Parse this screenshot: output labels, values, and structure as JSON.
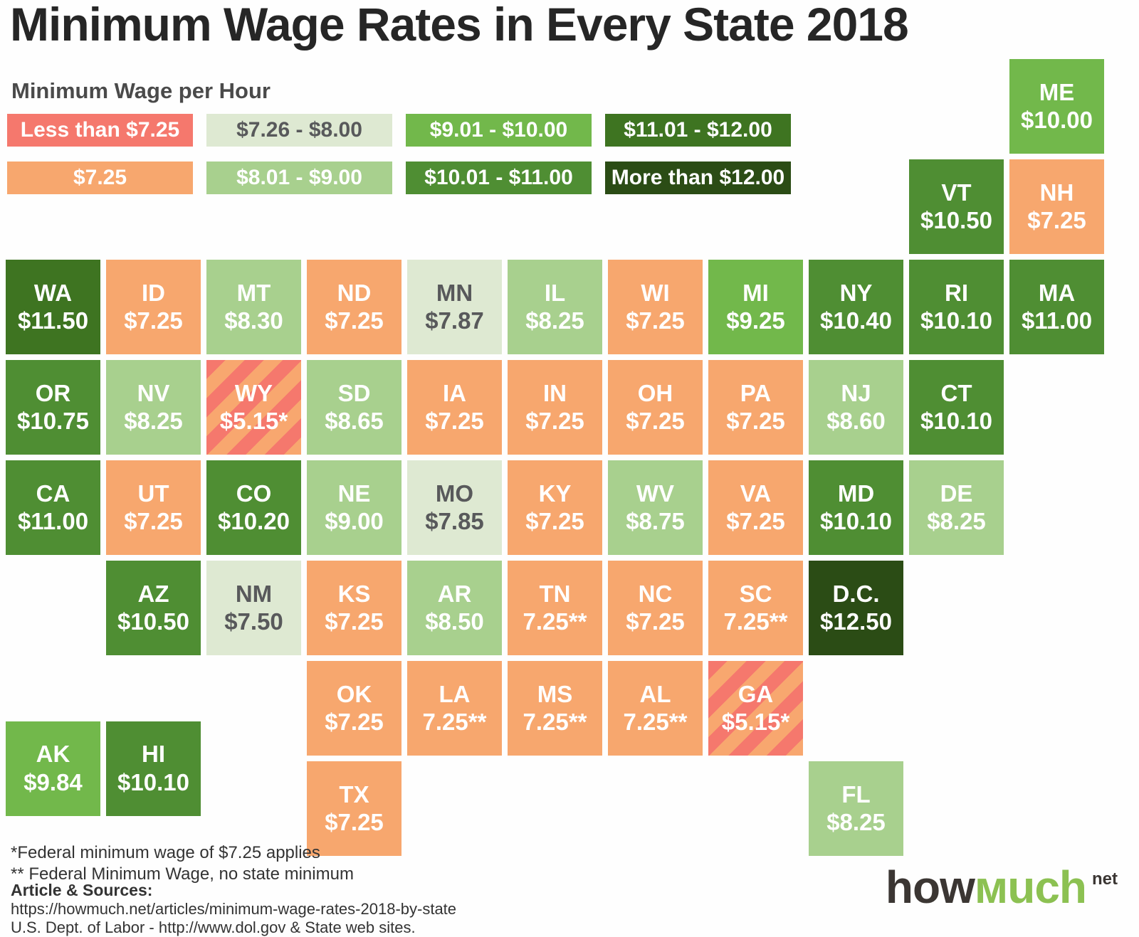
{
  "title": "Minimum Wage Rates in Every State 2018",
  "legend": {
    "heading": "Minimum Wage per Hour"
  },
  "categories": [
    {
      "id": "lt-7.25",
      "label": "Less than $7.25",
      "color": "#f5786d",
      "stripe_color": "#f8a76f",
      "text_color": "#ffffff",
      "striped": true
    },
    {
      "id": "7.25",
      "label": "$7.25",
      "color": "#f7a76e",
      "text_color": "#ffffff",
      "striped": false
    },
    {
      "id": "7.26-8.00",
      "label": "$7.26 - $8.00",
      "color": "#dee9d2",
      "text_color": "#58595b",
      "striped": false
    },
    {
      "id": "8.01-9.00",
      "label": "$8.01 - $9.00",
      "color": "#a8d08e",
      "text_color": "#ffffff",
      "striped": false
    },
    {
      "id": "9.01-10.00",
      "label": "$9.01 - $10.00",
      "color": "#72b84b",
      "text_color": "#ffffff",
      "striped": false
    },
    {
      "id": "10.01-11.00",
      "label": "$10.01 - $11.00",
      "color": "#4f8e33",
      "text_color": "#ffffff",
      "striped": false
    },
    {
      "id": "11.01-12.00",
      "label": "$11.01 - $12.00",
      "color": "#3e7421",
      "text_color": "#ffffff",
      "striped": false
    },
    {
      "id": "gt-12.00",
      "label": "More than $12.00",
      "color": "#2b4c15",
      "text_color": "#ffffff",
      "striped": false
    }
  ],
  "map": {
    "tiles": [
      {
        "abbr": "ME",
        "value": "$10.00",
        "cat": 4,
        "row": 0,
        "col": 10
      },
      {
        "abbr": "VT",
        "value": "$10.50",
        "cat": 5,
        "row": 1,
        "col": 9
      },
      {
        "abbr": "NH",
        "value": "$7.25",
        "cat": 1,
        "row": 1,
        "col": 10
      },
      {
        "abbr": "WA",
        "value": "$11.50",
        "cat": 6,
        "row": 2,
        "col": 0
      },
      {
        "abbr": "ID",
        "value": "$7.25",
        "cat": 1,
        "row": 2,
        "col": 1
      },
      {
        "abbr": "MT",
        "value": "$8.30",
        "cat": 3,
        "row": 2,
        "col": 2
      },
      {
        "abbr": "ND",
        "value": "$7.25",
        "cat": 1,
        "row": 2,
        "col": 3
      },
      {
        "abbr": "MN",
        "value": "$7.87",
        "cat": 2,
        "row": 2,
        "col": 4
      },
      {
        "abbr": "IL",
        "value": "$8.25",
        "cat": 3,
        "row": 2,
        "col": 5
      },
      {
        "abbr": "WI",
        "value": "$7.25",
        "cat": 1,
        "row": 2,
        "col": 6
      },
      {
        "abbr": "MI",
        "value": "$9.25",
        "cat": 4,
        "row": 2,
        "col": 7
      },
      {
        "abbr": "NY",
        "value": "$10.40",
        "cat": 5,
        "row": 2,
        "col": 8
      },
      {
        "abbr": "RI",
        "value": "$10.10",
        "cat": 5,
        "row": 2,
        "col": 9
      },
      {
        "abbr": "MA",
        "value": "$11.00",
        "cat": 5,
        "row": 2,
        "col": 10
      },
      {
        "abbr": "OR",
        "value": "$10.75",
        "cat": 5,
        "row": 3,
        "col": 0
      },
      {
        "abbr": "NV",
        "value": "$8.25",
        "cat": 3,
        "row": 3,
        "col": 1
      },
      {
        "abbr": "WY",
        "value": "$5.15*",
        "cat": 0,
        "row": 3,
        "col": 2
      },
      {
        "abbr": "SD",
        "value": "$8.65",
        "cat": 3,
        "row": 3,
        "col": 3
      },
      {
        "abbr": "IA",
        "value": "$7.25",
        "cat": 1,
        "row": 3,
        "col": 4
      },
      {
        "abbr": "IN",
        "value": "$7.25",
        "cat": 1,
        "row": 3,
        "col": 5
      },
      {
        "abbr": "OH",
        "value": "$7.25",
        "cat": 1,
        "row": 3,
        "col": 6
      },
      {
        "abbr": "PA",
        "value": "$7.25",
        "cat": 1,
        "row": 3,
        "col": 7
      },
      {
        "abbr": "NJ",
        "value": "$8.60",
        "cat": 3,
        "row": 3,
        "col": 8
      },
      {
        "abbr": "CT",
        "value": "$10.10",
        "cat": 5,
        "row": 3,
        "col": 9
      },
      {
        "abbr": "CA",
        "value": "$11.00",
        "cat": 5,
        "row": 4,
        "col": 0
      },
      {
        "abbr": "UT",
        "value": "$7.25",
        "cat": 1,
        "row": 4,
        "col": 1
      },
      {
        "abbr": "CO",
        "value": "$10.20",
        "cat": 5,
        "row": 4,
        "col": 2
      },
      {
        "abbr": "NE",
        "value": "$9.00",
        "cat": 3,
        "row": 4,
        "col": 3
      },
      {
        "abbr": "MO",
        "value": "$7.85",
        "cat": 2,
        "row": 4,
        "col": 4
      },
      {
        "abbr": "KY",
        "value": "$7.25",
        "cat": 1,
        "row": 4,
        "col": 5
      },
      {
        "abbr": "WV",
        "value": "$8.75",
        "cat": 3,
        "row": 4,
        "col": 6
      },
      {
        "abbr": "VA",
        "value": "$7.25",
        "cat": 1,
        "row": 4,
        "col": 7
      },
      {
        "abbr": "MD",
        "value": "$10.10",
        "cat": 5,
        "row": 4,
        "col": 8
      },
      {
        "abbr": "DE",
        "value": "$8.25",
        "cat": 3,
        "row": 4,
        "col": 9
      },
      {
        "abbr": "AZ",
        "value": "$10.50",
        "cat": 5,
        "row": 5,
        "col": 1
      },
      {
        "abbr": "NM",
        "value": "$7.50",
        "cat": 2,
        "row": 5,
        "col": 2
      },
      {
        "abbr": "KS",
        "value": "$7.25",
        "cat": 1,
        "row": 5,
        "col": 3
      },
      {
        "abbr": "AR",
        "value": "$8.50",
        "cat": 3,
        "row": 5,
        "col": 4
      },
      {
        "abbr": "TN",
        "value": "7.25**",
        "cat": 1,
        "row": 5,
        "col": 5
      },
      {
        "abbr": "NC",
        "value": "$7.25",
        "cat": 1,
        "row": 5,
        "col": 6
      },
      {
        "abbr": "SC",
        "value": "7.25**",
        "cat": 1,
        "row": 5,
        "col": 7
      },
      {
        "abbr": "D.C.",
        "value": "$12.50",
        "cat": 7,
        "row": 5,
        "col": 8
      },
      {
        "abbr": "OK",
        "value": "$7.25",
        "cat": 1,
        "row": 6,
        "col": 3
      },
      {
        "abbr": "LA",
        "value": "7.25**",
        "cat": 1,
        "row": 6,
        "col": 4
      },
      {
        "abbr": "MS",
        "value": "7.25**",
        "cat": 1,
        "row": 6,
        "col": 5
      },
      {
        "abbr": "AL",
        "value": "7.25**",
        "cat": 1,
        "row": 6,
        "col": 6
      },
      {
        "abbr": "GA",
        "value": "$5.15*",
        "cat": 0,
        "row": 6,
        "col": 7
      },
      {
        "abbr": "AK",
        "value": "$9.84",
        "cat": 4,
        "row": 6.6,
        "col": 0
      },
      {
        "abbr": "HI",
        "value": "$10.10",
        "cat": 5,
        "row": 6.6,
        "col": 1
      },
      {
        "abbr": "TX",
        "value": "$7.25",
        "cat": 1,
        "row": 7,
        "col": 3
      },
      {
        "abbr": "FL",
        "value": "$8.25",
        "cat": 3,
        "row": 7,
        "col": 8
      }
    ]
  },
  "footnotes": [
    "*Federal minimum wage of $7.25 applies",
    "** Federal Minimum Wage, no state minimum"
  ],
  "sources": {
    "heading": "Article & Sources:",
    "lines": [
      "https://howmuch.net/articles/minimum-wage-rates-2018-by-state",
      "U.S. Dept. of Labor -  http://www.dol.gov & State web sites."
    ]
  },
  "logo": {
    "part1": "how",
    "part2": "мuch",
    "tld": "net"
  },
  "chart_data": {
    "type": "heatmap",
    "title": "Minimum Wage Rates in Every State 2018",
    "subtitle": "Tile grid map of U.S. states colored by minimum hourly wage",
    "unit": "USD per hour",
    "legend_title": "Minimum Wage per Hour",
    "legend_position": "top-left",
    "buckets": [
      "Less than $7.25",
      "$7.25",
      "$7.26 - $8.00",
      "$8.01 - $9.00",
      "$9.01 - $10.00",
      "$10.01 - $11.00",
      "$11.01 - $12.00",
      "More than $12.00"
    ],
    "bucket_colors": [
      "#f5786d",
      "#f7a76e",
      "#dee9d2",
      "#a8d08e",
      "#72b84b",
      "#4f8e33",
      "#3e7421",
      "#2b4c15"
    ],
    "values": [
      {
        "state": "WA",
        "wage": 11.5
      },
      {
        "state": "ID",
        "wage": 7.25
      },
      {
        "state": "MT",
        "wage": 8.3
      },
      {
        "state": "ND",
        "wage": 7.25
      },
      {
        "state": "MN",
        "wage": 7.87
      },
      {
        "state": "IL",
        "wage": 8.25
      },
      {
        "state": "WI",
        "wage": 7.25
      },
      {
        "state": "MI",
        "wage": 9.25
      },
      {
        "state": "NY",
        "wage": 10.4
      },
      {
        "state": "RI",
        "wage": 10.1
      },
      {
        "state": "MA",
        "wage": 11.0
      },
      {
        "state": "ME",
        "wage": 10.0
      },
      {
        "state": "VT",
        "wage": 10.5
      },
      {
        "state": "NH",
        "wage": 7.25
      },
      {
        "state": "OR",
        "wage": 10.75
      },
      {
        "state": "NV",
        "wage": 8.25
      },
      {
        "state": "WY",
        "wage": 5.15,
        "note": "*"
      },
      {
        "state": "SD",
        "wage": 8.65
      },
      {
        "state": "IA",
        "wage": 7.25
      },
      {
        "state": "IN",
        "wage": 7.25
      },
      {
        "state": "OH",
        "wage": 7.25
      },
      {
        "state": "PA",
        "wage": 7.25
      },
      {
        "state": "NJ",
        "wage": 8.6
      },
      {
        "state": "CT",
        "wage": 10.1
      },
      {
        "state": "CA",
        "wage": 11.0
      },
      {
        "state": "UT",
        "wage": 7.25
      },
      {
        "state": "CO",
        "wage": 10.2
      },
      {
        "state": "NE",
        "wage": 9.0
      },
      {
        "state": "MO",
        "wage": 7.85
      },
      {
        "state": "KY",
        "wage": 7.25
      },
      {
        "state": "WV",
        "wage": 8.75
      },
      {
        "state": "VA",
        "wage": 7.25
      },
      {
        "state": "MD",
        "wage": 10.1
      },
      {
        "state": "DE",
        "wage": 8.25
      },
      {
        "state": "AZ",
        "wage": 10.5
      },
      {
        "state": "NM",
        "wage": 7.5
      },
      {
        "state": "KS",
        "wage": 7.25
      },
      {
        "state": "AR",
        "wage": 8.5
      },
      {
        "state": "TN",
        "wage": 7.25,
        "note": "**"
      },
      {
        "state": "NC",
        "wage": 7.25
      },
      {
        "state": "SC",
        "wage": 7.25,
        "note": "**"
      },
      {
        "state": "D.C.",
        "wage": 12.5
      },
      {
        "state": "OK",
        "wage": 7.25
      },
      {
        "state": "LA",
        "wage": 7.25,
        "note": "**"
      },
      {
        "state": "MS",
        "wage": 7.25,
        "note": "**"
      },
      {
        "state": "AL",
        "wage": 7.25,
        "note": "**"
      },
      {
        "state": "GA",
        "wage": 5.15,
        "note": "*"
      },
      {
        "state": "TX",
        "wage": 7.25
      },
      {
        "state": "FL",
        "wage": 8.25
      },
      {
        "state": "AK",
        "wage": 9.84
      },
      {
        "state": "HI",
        "wage": 10.1
      }
    ],
    "notes": [
      "*Federal minimum wage of $7.25 applies",
      "** Federal Minimum Wage, no state minimum"
    ]
  }
}
